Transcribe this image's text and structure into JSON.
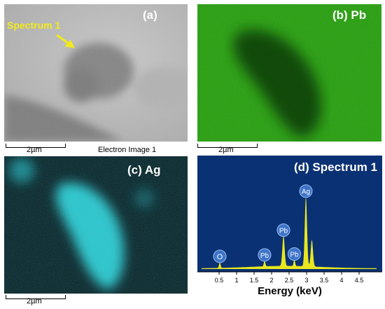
{
  "panels": {
    "a": {
      "label": "(a)",
      "annotation": "Spectrum 1",
      "scale": "2µm",
      "caption": "Electron Image 1"
    },
    "b": {
      "label": "(b)  Pb",
      "scale": "2µm"
    },
    "c": {
      "label": "(c)  Ag",
      "scale": "2µm"
    },
    "d": {
      "label": "(d) Spectrum 1"
    }
  },
  "chart_data": {
    "type": "area",
    "title": "(d) Spectrum 1",
    "xlabel": "Energy (keV)",
    "ylabel": "",
    "xlim": [
      0,
      5
    ],
    "x_ticks": [
      "0.5",
      "1",
      "1.5",
      "2",
      "2.5",
      "3",
      "3.5",
      "4",
      "4.5"
    ],
    "peaks": [
      {
        "element": "O",
        "energy": 0.52,
        "intensity": 0.06
      },
      {
        "element": "Pb",
        "energy": 1.8,
        "intensity": 0.06
      },
      {
        "element": "Pb",
        "energy": 2.34,
        "intensity": 0.32
      },
      {
        "element": "Pb",
        "energy": 2.65,
        "intensity": 0.07
      },
      {
        "element": "Ag",
        "energy": 2.98,
        "intensity": 0.73
      },
      {
        "element": "",
        "energy": 3.15,
        "intensity": 0.28
      }
    ],
    "colors": {
      "background": "#0a3173",
      "fill": "#e8e620",
      "badge": "#3d73c9"
    }
  },
  "colors": {
    "annotation": "#f2ea1a",
    "pb_map": "#3fb022",
    "ag_map": "#19b5bd"
  }
}
